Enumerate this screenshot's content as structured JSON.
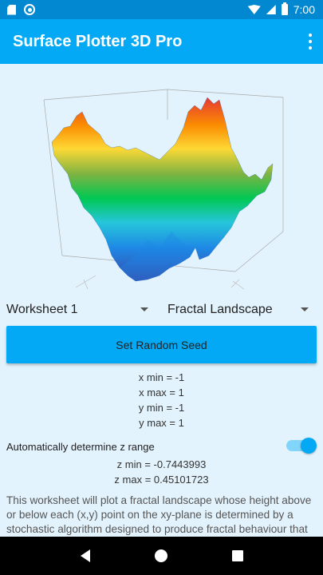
{
  "status_bar": {
    "time": "7:00"
  },
  "app_bar": {
    "title": "Surface Plotter 3D Pro"
  },
  "controls": {
    "worksheet": "Worksheet 1",
    "plot_type": "Fractal Landscape",
    "seed_button": "Set Random Seed"
  },
  "ranges": {
    "x_min": "x min = -1",
    "x_max": "x max = 1",
    "y_min": "y min = -1",
    "y_max": "y max = 1"
  },
  "z_range": {
    "toggle_label": "Automatically determine z range",
    "toggle_on": true,
    "z_min": "z min = -0.7443993",
    "z_max": "z max = 0.45101723"
  },
  "description": "This worksheet will plot a fractal landscape whose height above or below each (x,y) point on the xy-plane is determined by a stochastic algorithm designed to produce fractal behaviour that mimics the appearance of natural terrain."
}
